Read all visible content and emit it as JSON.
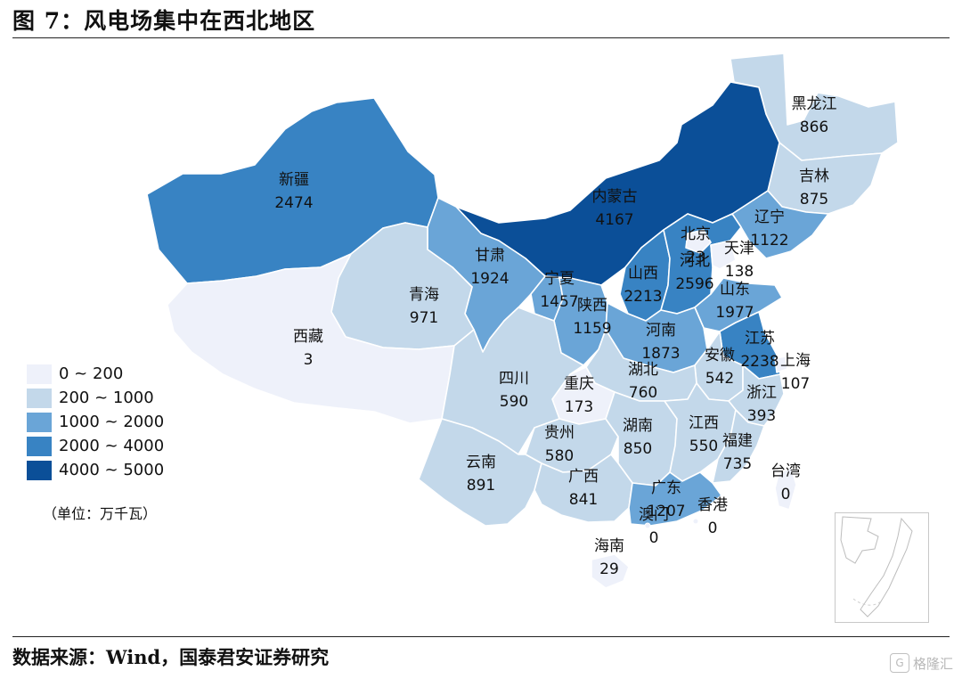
{
  "title": "图 7：风电场集中在西北地区",
  "source": "数据来源：Wind，国泰君安证券研究",
  "watermark": "格隆汇",
  "unit": "（单位：万千瓦）",
  "legend": [
    {
      "label": "0 ~ 200",
      "color": "#eef1fa"
    },
    {
      "label": "200 ~ 1000",
      "color": "#c3d8ea"
    },
    {
      "label": "1000 ~ 2000",
      "color": "#6aa5d7"
    },
    {
      "label": "2000 ~ 4000",
      "color": "#3883c3"
    },
    {
      "label": "4000 ~ 5000",
      "color": "#0b4f98"
    }
  ],
  "provinces": [
    {
      "name": "黑龙江",
      "value": "866"
    },
    {
      "name": "吉林",
      "value": "875"
    },
    {
      "name": "辽宁",
      "value": "1122"
    },
    {
      "name": "内蒙古",
      "value": "4167"
    },
    {
      "name": "新疆",
      "value": "2474"
    },
    {
      "name": "甘肃",
      "value": "1924"
    },
    {
      "name": "青海",
      "value": "971"
    },
    {
      "name": "西藏",
      "value": "3"
    },
    {
      "name": "宁夏",
      "value": "1457"
    },
    {
      "name": "陕西",
      "value": "1159"
    },
    {
      "name": "山西",
      "value": "2213"
    },
    {
      "name": "河北",
      "value": "2596"
    },
    {
      "name": "北京",
      "value": "23"
    },
    {
      "name": "天津",
      "value": "138"
    },
    {
      "name": "山东",
      "value": "1977"
    },
    {
      "name": "河南",
      "value": "1873"
    },
    {
      "name": "江苏",
      "value": "2238"
    },
    {
      "name": "上海",
      "value": "107"
    },
    {
      "name": "安徽",
      "value": "542"
    },
    {
      "name": "浙江",
      "value": "393"
    },
    {
      "name": "湖北",
      "value": "760"
    },
    {
      "name": "重庆",
      "value": "173"
    },
    {
      "name": "四川",
      "value": "590"
    },
    {
      "name": "贵州",
      "value": "580"
    },
    {
      "name": "湖南",
      "value": "850"
    },
    {
      "name": "江西",
      "value": "550"
    },
    {
      "name": "福建",
      "value": "735"
    },
    {
      "name": "云南",
      "value": "891"
    },
    {
      "name": "广西",
      "value": "841"
    },
    {
      "name": "广东",
      "value": "1207"
    },
    {
      "name": "澳门",
      "value": "0"
    },
    {
      "name": "香港",
      "value": "0"
    },
    {
      "name": "台湾",
      "value": "0"
    },
    {
      "name": "海南",
      "value": "29"
    }
  ]
}
